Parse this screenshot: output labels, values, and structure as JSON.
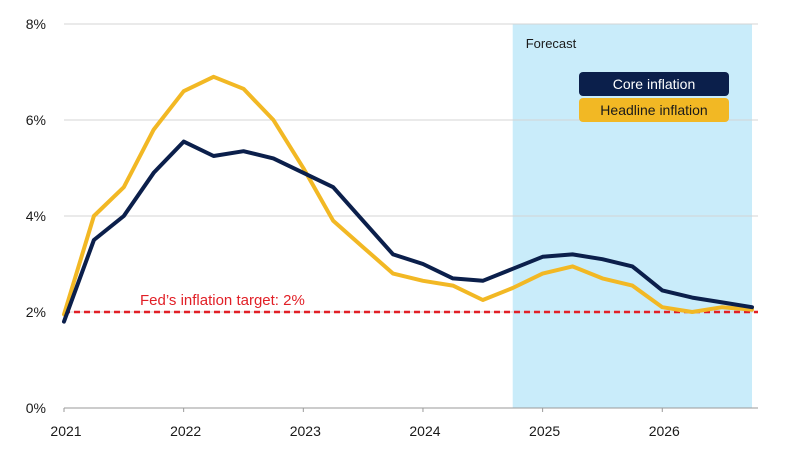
{
  "chart_data": {
    "type": "line",
    "title": "",
    "xlabel": "",
    "ylabel": "",
    "x_ticks": [
      "2021",
      "2022",
      "2023",
      "2024",
      "2025",
      "2026"
    ],
    "x_range": [
      2021.0,
      2026.8
    ],
    "y_ticks": [
      "0%",
      "2%",
      "4%",
      "6%",
      "8%"
    ],
    "ylim": [
      0,
      8
    ],
    "grid": "horizontal",
    "forecast": {
      "label": "Forecast",
      "start": 2024.75,
      "end": 2026.75,
      "color": "#c9ecfa"
    },
    "target": {
      "label": "Fed’s inflation target: 2%",
      "value": 2,
      "color": "#e11f26"
    },
    "legend": {
      "placement": "top-right"
    },
    "series": [
      {
        "name": "Core inflation",
        "color": "#0b1f4b",
        "x": [
          2021.0,
          2021.25,
          2021.5,
          2021.75,
          2022.0,
          2022.25,
          2022.5,
          2022.75,
          2023.0,
          2023.25,
          2023.5,
          2023.75,
          2024.0,
          2024.25,
          2024.5,
          2024.75,
          2025.0,
          2025.25,
          2025.5,
          2025.75,
          2026.0,
          2026.25,
          2026.5,
          2026.75
        ],
        "values": [
          1.8,
          3.5,
          4.0,
          4.9,
          5.55,
          5.25,
          5.35,
          5.2,
          4.9,
          4.6,
          3.9,
          3.2,
          3.0,
          2.7,
          2.65,
          2.9,
          3.15,
          3.2,
          3.1,
          2.95,
          2.45,
          2.3,
          2.2,
          2.1
        ]
      },
      {
        "name": "Headline inflation",
        "color": "#f2b824",
        "x": [
          2021.0,
          2021.25,
          2021.5,
          2021.75,
          2022.0,
          2022.25,
          2022.5,
          2022.75,
          2023.0,
          2023.25,
          2023.5,
          2023.75,
          2024.0,
          2024.25,
          2024.5,
          2024.75,
          2025.0,
          2025.25,
          2025.5,
          2025.75,
          2026.0,
          2026.25,
          2026.5,
          2026.75
        ],
        "values": [
          1.95,
          4.0,
          4.6,
          5.8,
          6.6,
          6.9,
          6.65,
          6.0,
          5.0,
          3.9,
          3.35,
          2.8,
          2.65,
          2.55,
          2.25,
          2.5,
          2.8,
          2.95,
          2.7,
          2.55,
          2.1,
          2.0,
          2.1,
          2.05
        ]
      }
    ]
  }
}
